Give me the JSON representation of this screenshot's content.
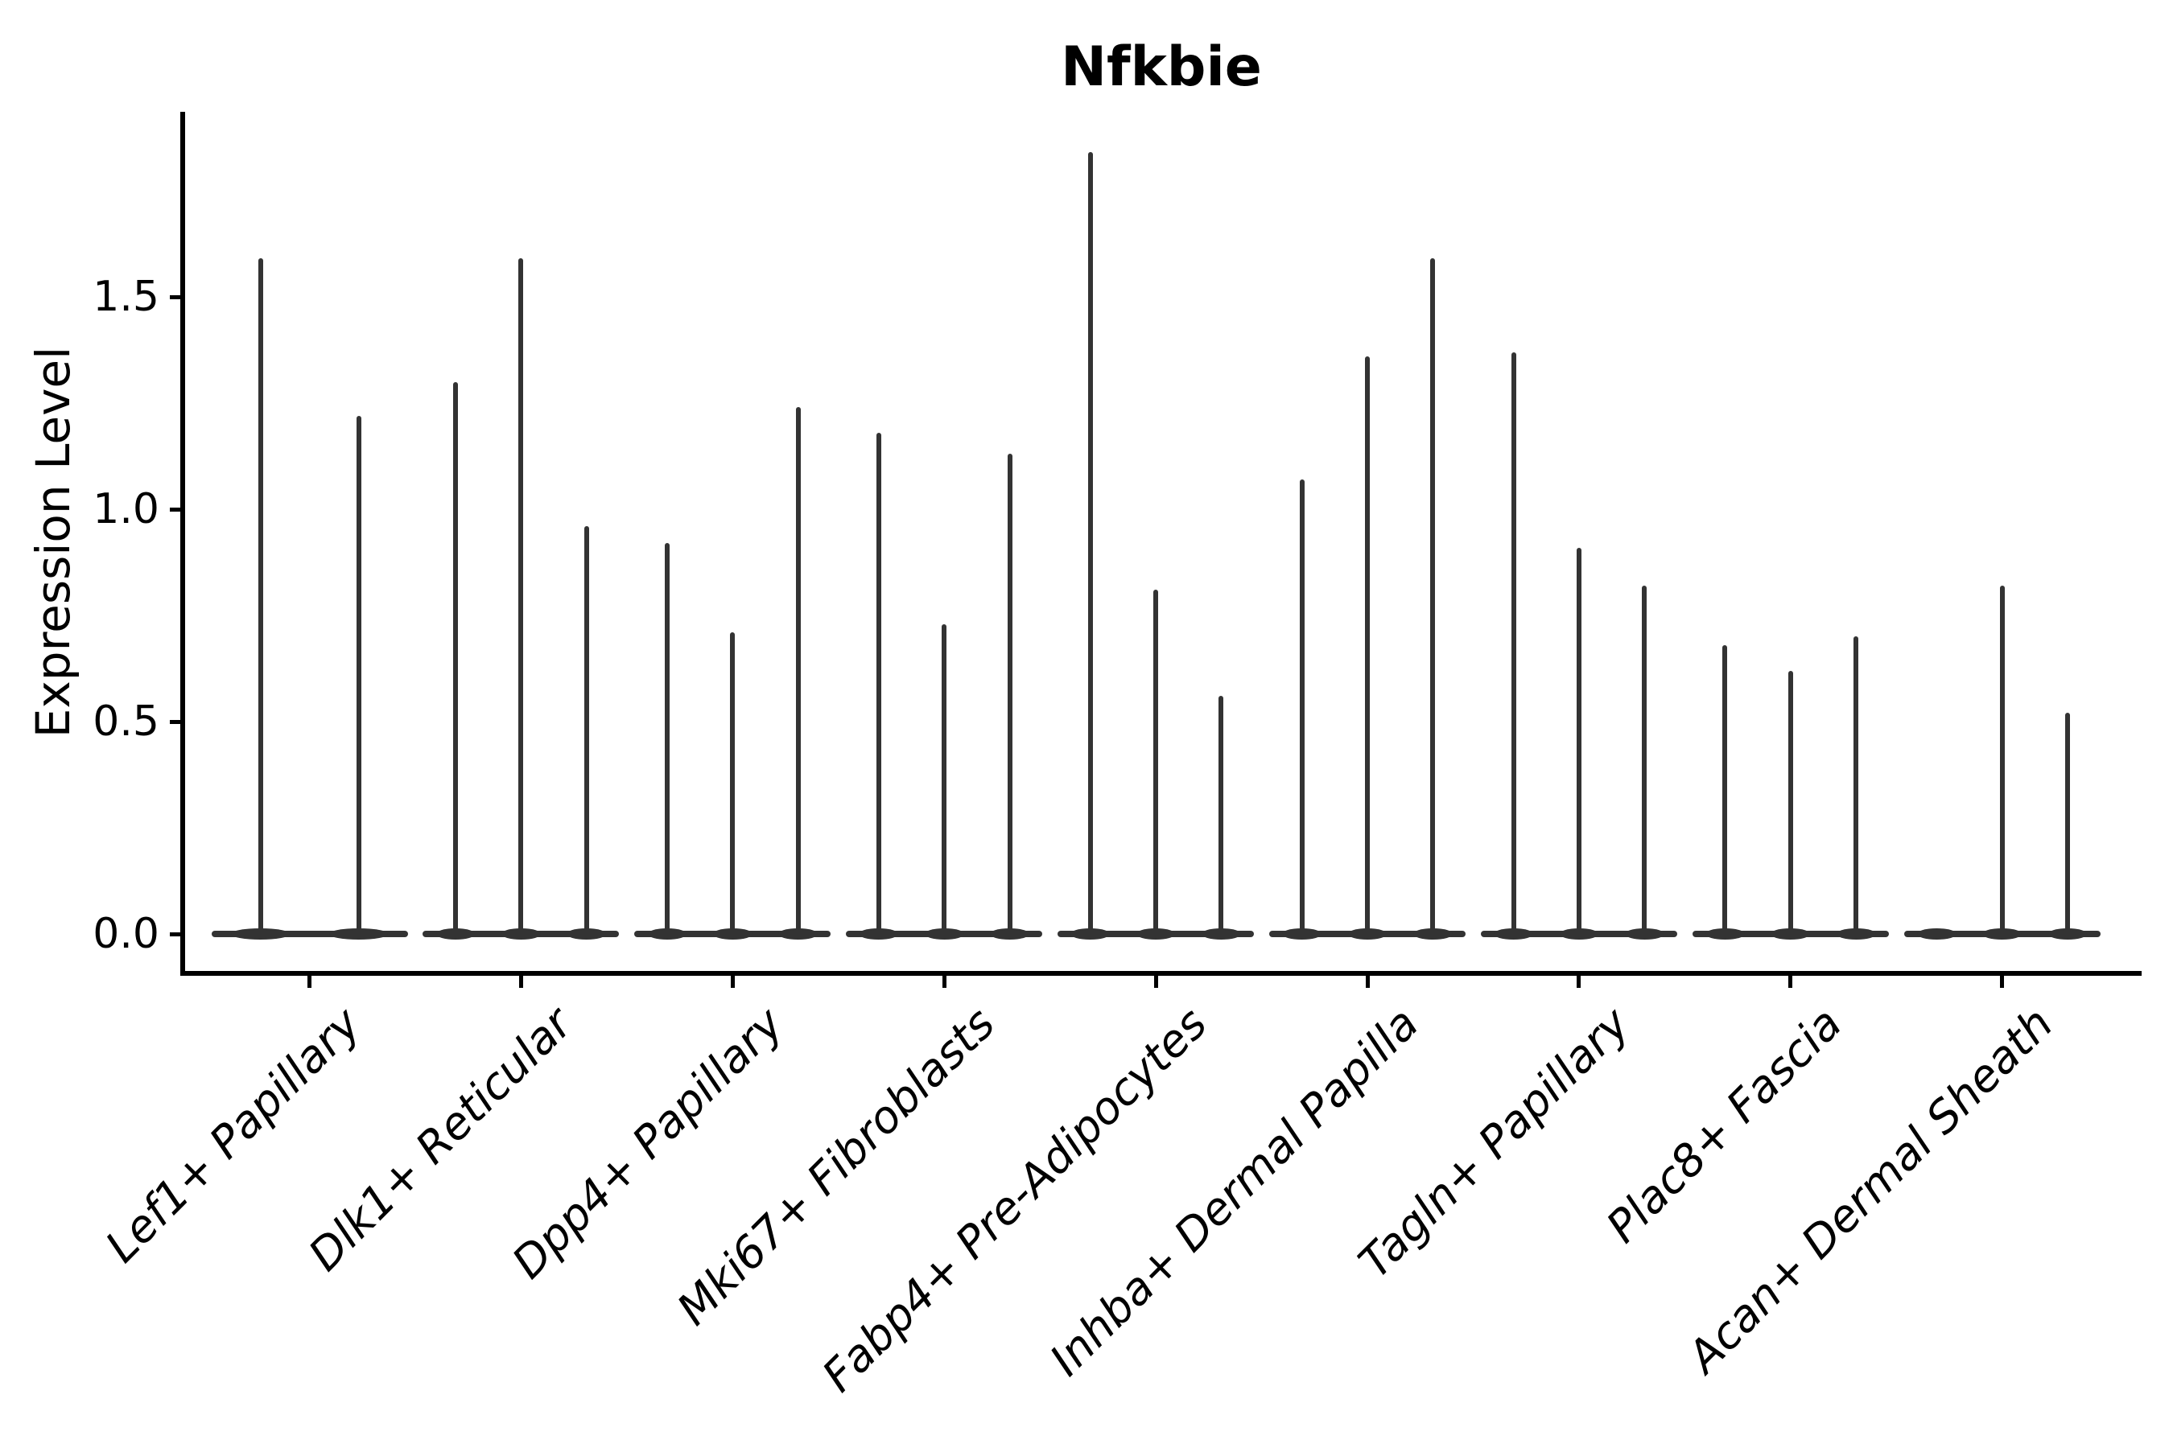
{
  "chart_data": {
    "type": "violin",
    "title": "Nfkbie",
    "ylabel": "Expression Level",
    "xlabel": "",
    "yticks": [
      "0.0",
      "0.5",
      "1.0",
      "1.5"
    ],
    "ytick_values": [
      0.0,
      0.5,
      1.0,
      1.5
    ],
    "ylim": [
      -0.09,
      1.93
    ],
    "grid": false,
    "legend": "none",
    "violin_color": "#333333",
    "axis_color": "#000000",
    "categories": [
      "Lef1+ Papillary",
      "Dlk1+ Reticular",
      "Dpp4+ Papillary",
      "Mki67+ Fibroblasts",
      "Fabp4+ Pre-Adipocytes",
      "Inhba+ Dermal Papilla",
      "Tagln+ Papillary",
      "Plac8+ Fascia",
      "Acan+ Dermal Sheath"
    ],
    "groups": [
      {
        "label": "Lef1+ Papillary",
        "violin_max_values": [
          1.59,
          1.22
        ]
      },
      {
        "label": "Dlk1+ Reticular",
        "violin_max_values": [
          1.3,
          1.59,
          0.96
        ]
      },
      {
        "label": "Dpp4+ Papillary",
        "violin_max_values": [
          0.92,
          0.71,
          1.24
        ]
      },
      {
        "label": "Mki67+ Fibroblasts",
        "violin_max_values": [
          1.18,
          0.73,
          1.13
        ]
      },
      {
        "label": "Fabp4+ Pre-Adipocytes",
        "violin_max_values": [
          1.84,
          0.81,
          0.56
        ]
      },
      {
        "label": "Inhba+ Dermal Papilla",
        "violin_max_values": [
          1.07,
          1.36,
          1.59
        ]
      },
      {
        "label": "Tagln+ Papillary",
        "violin_max_values": [
          1.37,
          0.91,
          0.82
        ]
      },
      {
        "label": "Plac8+ Fascia",
        "violin_max_values": [
          0.68,
          0.62,
          0.7
        ]
      },
      {
        "label": "Acan+ Dermal Sheath",
        "violin_max_values": [
          0.0,
          0.82,
          0.52
        ]
      }
    ]
  }
}
